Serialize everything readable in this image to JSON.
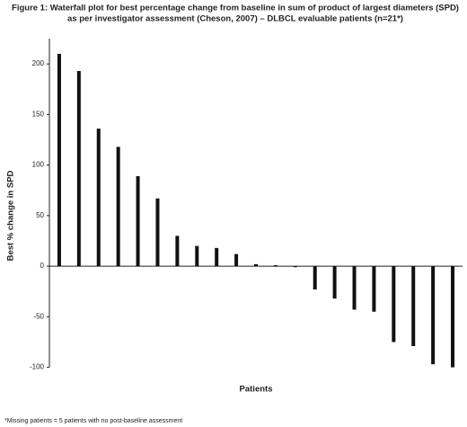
{
  "chart_data": {
    "type": "bar",
    "title": [
      "Figure 1: Waterfall plot for best percentage change from baseline in sum of product of largest diameters (SPD)",
      "as per investigator assessment (Cheson, 2007) – DLBCL evaluable patients (n=21*)"
    ],
    "ylabel": "Best % change in SPD",
    "xlabel": "Patients",
    "footnote": "*Missing patients = 5 patients with no post-baseline assessment",
    "categories": [
      null,
      null,
      null,
      null,
      null,
      null,
      null,
      null,
      null,
      null,
      null,
      null,
      null,
      null,
      null,
      null,
      null,
      null,
      null,
      null,
      null
    ],
    "values": [
      210,
      193,
      136,
      118,
      89,
      67,
      30,
      20,
      18,
      12,
      2,
      1,
      -1,
      -23,
      -32,
      -43,
      -45,
      -75,
      -79,
      -97,
      -100
    ],
    "color": "#111111",
    "ylim": [
      -100,
      225
    ],
    "yticks": [
      -100,
      -50,
      0,
      50,
      100,
      150,
      200
    ],
    "grid": false
  }
}
